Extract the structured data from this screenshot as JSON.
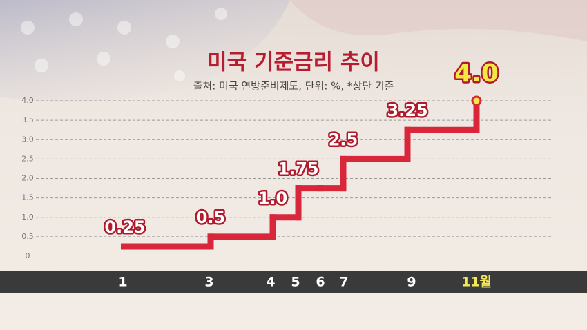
{
  "chart_data": {
    "type": "step",
    "title": "미국 기준금리 추이",
    "subtitle": "출처: 미국 연방준비제도, 단위: %, *상단 기준",
    "categories": [
      "1",
      "3",
      "4",
      "5",
      "6",
      "7",
      "9",
      "11월"
    ],
    "values": [
      0.25,
      0.5,
      1.0,
      1.75,
      1.75,
      2.5,
      3.25,
      4.0
    ],
    "value_labels": [
      "0.25",
      "0.5",
      "1.0",
      "1.75",
      null,
      "2.5",
      "3.25",
      "4.0"
    ],
    "color": "#d8263a",
    "ylim": [
      0,
      4
    ],
    "yticks": [
      0,
      0.5,
      {
        "value": 1,
        "label": "1.0"
      },
      1.5,
      {
        "value": 2,
        "label": "2.0"
      },
      2.5,
      {
        "value": 3,
        "label": "3.0"
      },
      3.5,
      {
        "value": 4,
        "label": "4.0"
      }
    ],
    "grid": true
  }
}
